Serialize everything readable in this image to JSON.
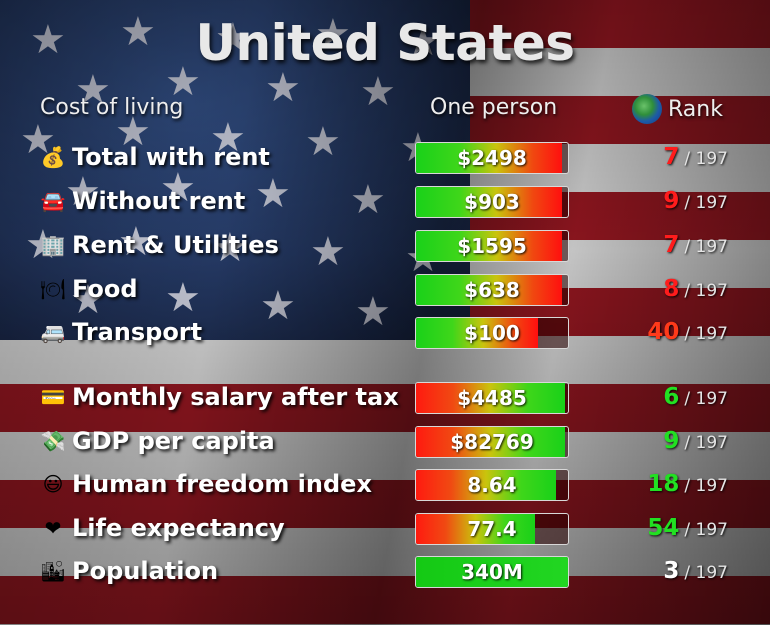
{
  "title": "United States",
  "headers": {
    "category": "Cost of living",
    "value": "One person",
    "rank": "Rank"
  },
  "rank_total_suffix": "/ 197",
  "colors": {
    "bad_rank": "#ff1c1c",
    "good_rank": "#22e022",
    "neutral_rank": "#ffffff"
  },
  "rows": [
    {
      "icon": "money-bag-icon",
      "glyph": "💰",
      "label": "Total with rent",
      "value": "$2498",
      "level": 0.96,
      "scale": "cost",
      "rank": "7",
      "rank_color": "red"
    },
    {
      "icon": "car-icon",
      "glyph": "🚘",
      "label": "Without rent",
      "value": "$903",
      "level": 0.96,
      "scale": "cost",
      "rank": "9",
      "rank_color": "red"
    },
    {
      "icon": "building-icon",
      "glyph": "🏢",
      "label": "Rent & Utilities",
      "value": "$1595",
      "level": 0.96,
      "scale": "cost",
      "rank": "7",
      "rank_color": "red"
    },
    {
      "icon": "plate-icon",
      "glyph": "🍽",
      "label": "Food",
      "value": "$638",
      "level": 0.96,
      "scale": "cost",
      "rank": "8",
      "rank_color": "red"
    },
    {
      "icon": "bus-icon",
      "glyph": "🚐",
      "label": "Transport",
      "value": "$100",
      "level": 0.8,
      "scale": "cost",
      "rank": "40",
      "rank_color": "orange"
    },
    {
      "icon": "credit-card-icon",
      "glyph": "💳",
      "label": "Monthly salary after tax",
      "value": "$4485",
      "level": 0.98,
      "scale": "good",
      "rank": "6",
      "rank_color": "green"
    },
    {
      "icon": "money-icon",
      "glyph": "💸",
      "label": "GDP per capita",
      "value": "$82769",
      "level": 0.98,
      "scale": "good",
      "rank": "9",
      "rank_color": "green"
    },
    {
      "icon": "smiley-icon",
      "glyph": "😃",
      "label": "Human freedom index",
      "value": "8.64",
      "level": 0.92,
      "scale": "good",
      "rank": "18",
      "rank_color": "green"
    },
    {
      "icon": "heart-icon",
      "glyph": "❤",
      "label": "Life expectancy",
      "value": "77.4",
      "level": 0.78,
      "scale": "good",
      "rank": "54",
      "rank_color": "green"
    },
    {
      "icon": "city-icon",
      "glyph": "🏙",
      "label": "Population",
      "value": "340M",
      "level": 1.0,
      "scale": "pop",
      "rank": "3",
      "rank_color": "white"
    }
  ]
}
